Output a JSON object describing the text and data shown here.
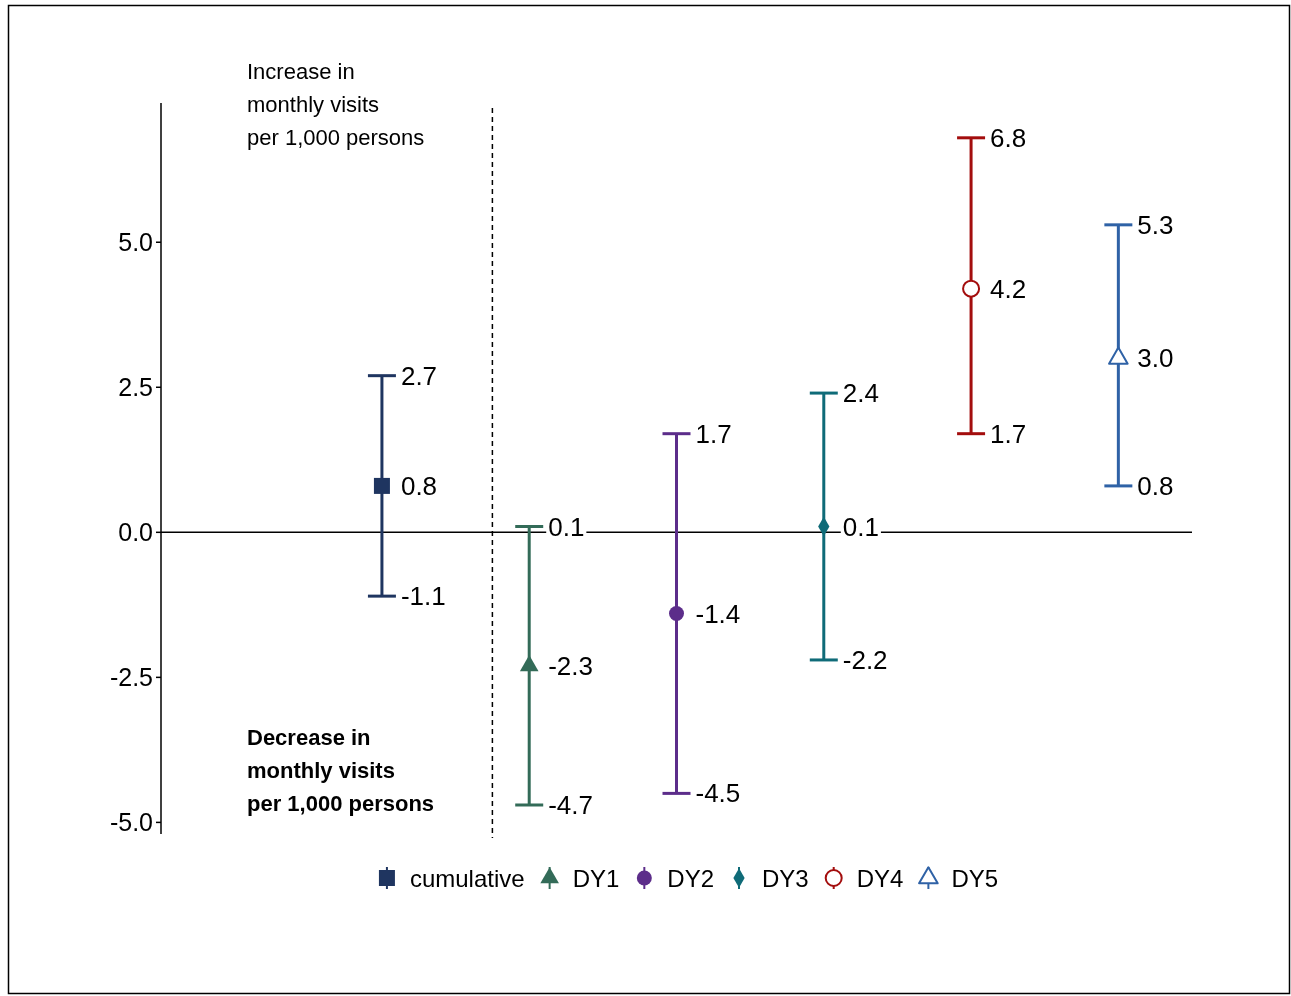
{
  "chart_data": {
    "type": "scatter",
    "categories": [
      null,
      null,
      null,
      null,
      null,
      null,
      null
    ],
    "series": [
      {
        "name": "cumulative",
        "color": "#1f3560",
        "marker": "square",
        "values": [
          null,
          0.8,
          null,
          null,
          null,
          null,
          null
        ],
        "errors": [
          null,
          [
            -1.1,
            2.7
          ],
          null,
          null,
          null,
          null,
          null
        ],
        "value_labels": [
          null,
          "0.8",
          null,
          null,
          null,
          null,
          null
        ]
      },
      {
        "name": "DY1",
        "color": "#336b58",
        "marker": "triangle",
        "values": [
          null,
          null,
          -2.3,
          null,
          null,
          null,
          null
        ],
        "errors": [
          null,
          null,
          [
            -4.7,
            0.1
          ],
          null,
          null,
          null,
          null
        ],
        "value_labels": [
          null,
          null,
          "-2.3",
          null,
          null,
          null,
          null
        ]
      },
      {
        "name": "DY2",
        "color": "#5c2d8a",
        "marker": "circle",
        "values": [
          null,
          null,
          null,
          -1.4,
          null,
          null,
          null
        ],
        "errors": [
          null,
          null,
          null,
          [
            -4.5,
            1.7
          ],
          null,
          null,
          null
        ],
        "value_labels": [
          null,
          null,
          null,
          "-1.4",
          null,
          null,
          null
        ]
      },
      {
        "name": "DY3",
        "color": "#0f6b78",
        "marker": "diamond",
        "values": [
          null,
          null,
          null,
          null,
          0.1,
          null,
          null
        ],
        "errors": [
          null,
          null,
          null,
          null,
          [
            -2.2,
            2.4
          ],
          null,
          null
        ],
        "value_labels": [
          null,
          null,
          null,
          null,
          "0.1",
          null,
          null
        ]
      },
      {
        "name": "DY4",
        "color": "#a30d0d",
        "marker": "circle-open",
        "values": [
          null,
          null,
          null,
          null,
          null,
          4.2,
          null
        ],
        "errors": [
          null,
          null,
          null,
          null,
          null,
          [
            1.7,
            6.8
          ],
          null
        ],
        "value_labels": [
          null,
          null,
          null,
          null,
          null,
          "4.2",
          null
        ]
      },
      {
        "name": "DY5",
        "color": "#2f62a6",
        "marker": "triangle-open",
        "values": [
          null,
          null,
          null,
          null,
          null,
          null,
          3.0
        ],
        "errors": [
          null,
          null,
          null,
          null,
          null,
          null,
          [
            0.8,
            5.3
          ]
        ],
        "value_labels": [
          null,
          null,
          null,
          null,
          null,
          null,
          "3.0"
        ]
      }
    ],
    "ylim": [
      -5.2,
      7.4
    ],
    "yticks": [
      {
        "value": -5,
        "label": "-5.0"
      },
      {
        "value": -2.5,
        "label": "-2.5"
      },
      {
        "value": 0,
        "label": "0.0"
      },
      {
        "value": 2.5,
        "label": "2.5"
      },
      {
        "value": 5,
        "label": "5.0"
      }
    ],
    "ref_lines": [
      {
        "axis": "y",
        "value": 0,
        "color": "#000000"
      }
    ],
    "annotations": [
      "Increase in\nmonthly visits\nper 1,000 persons",
      "Decrease in\nmonthly visits\nper 1,000 persons",
      "-1.1",
      "2.7",
      "-4.7",
      "0.1",
      "-4.5",
      "1.7",
      "-2.2",
      "2.4",
      "1.7",
      "6.8",
      "0.8",
      "5.3"
    ],
    "legend": "bottom"
  }
}
